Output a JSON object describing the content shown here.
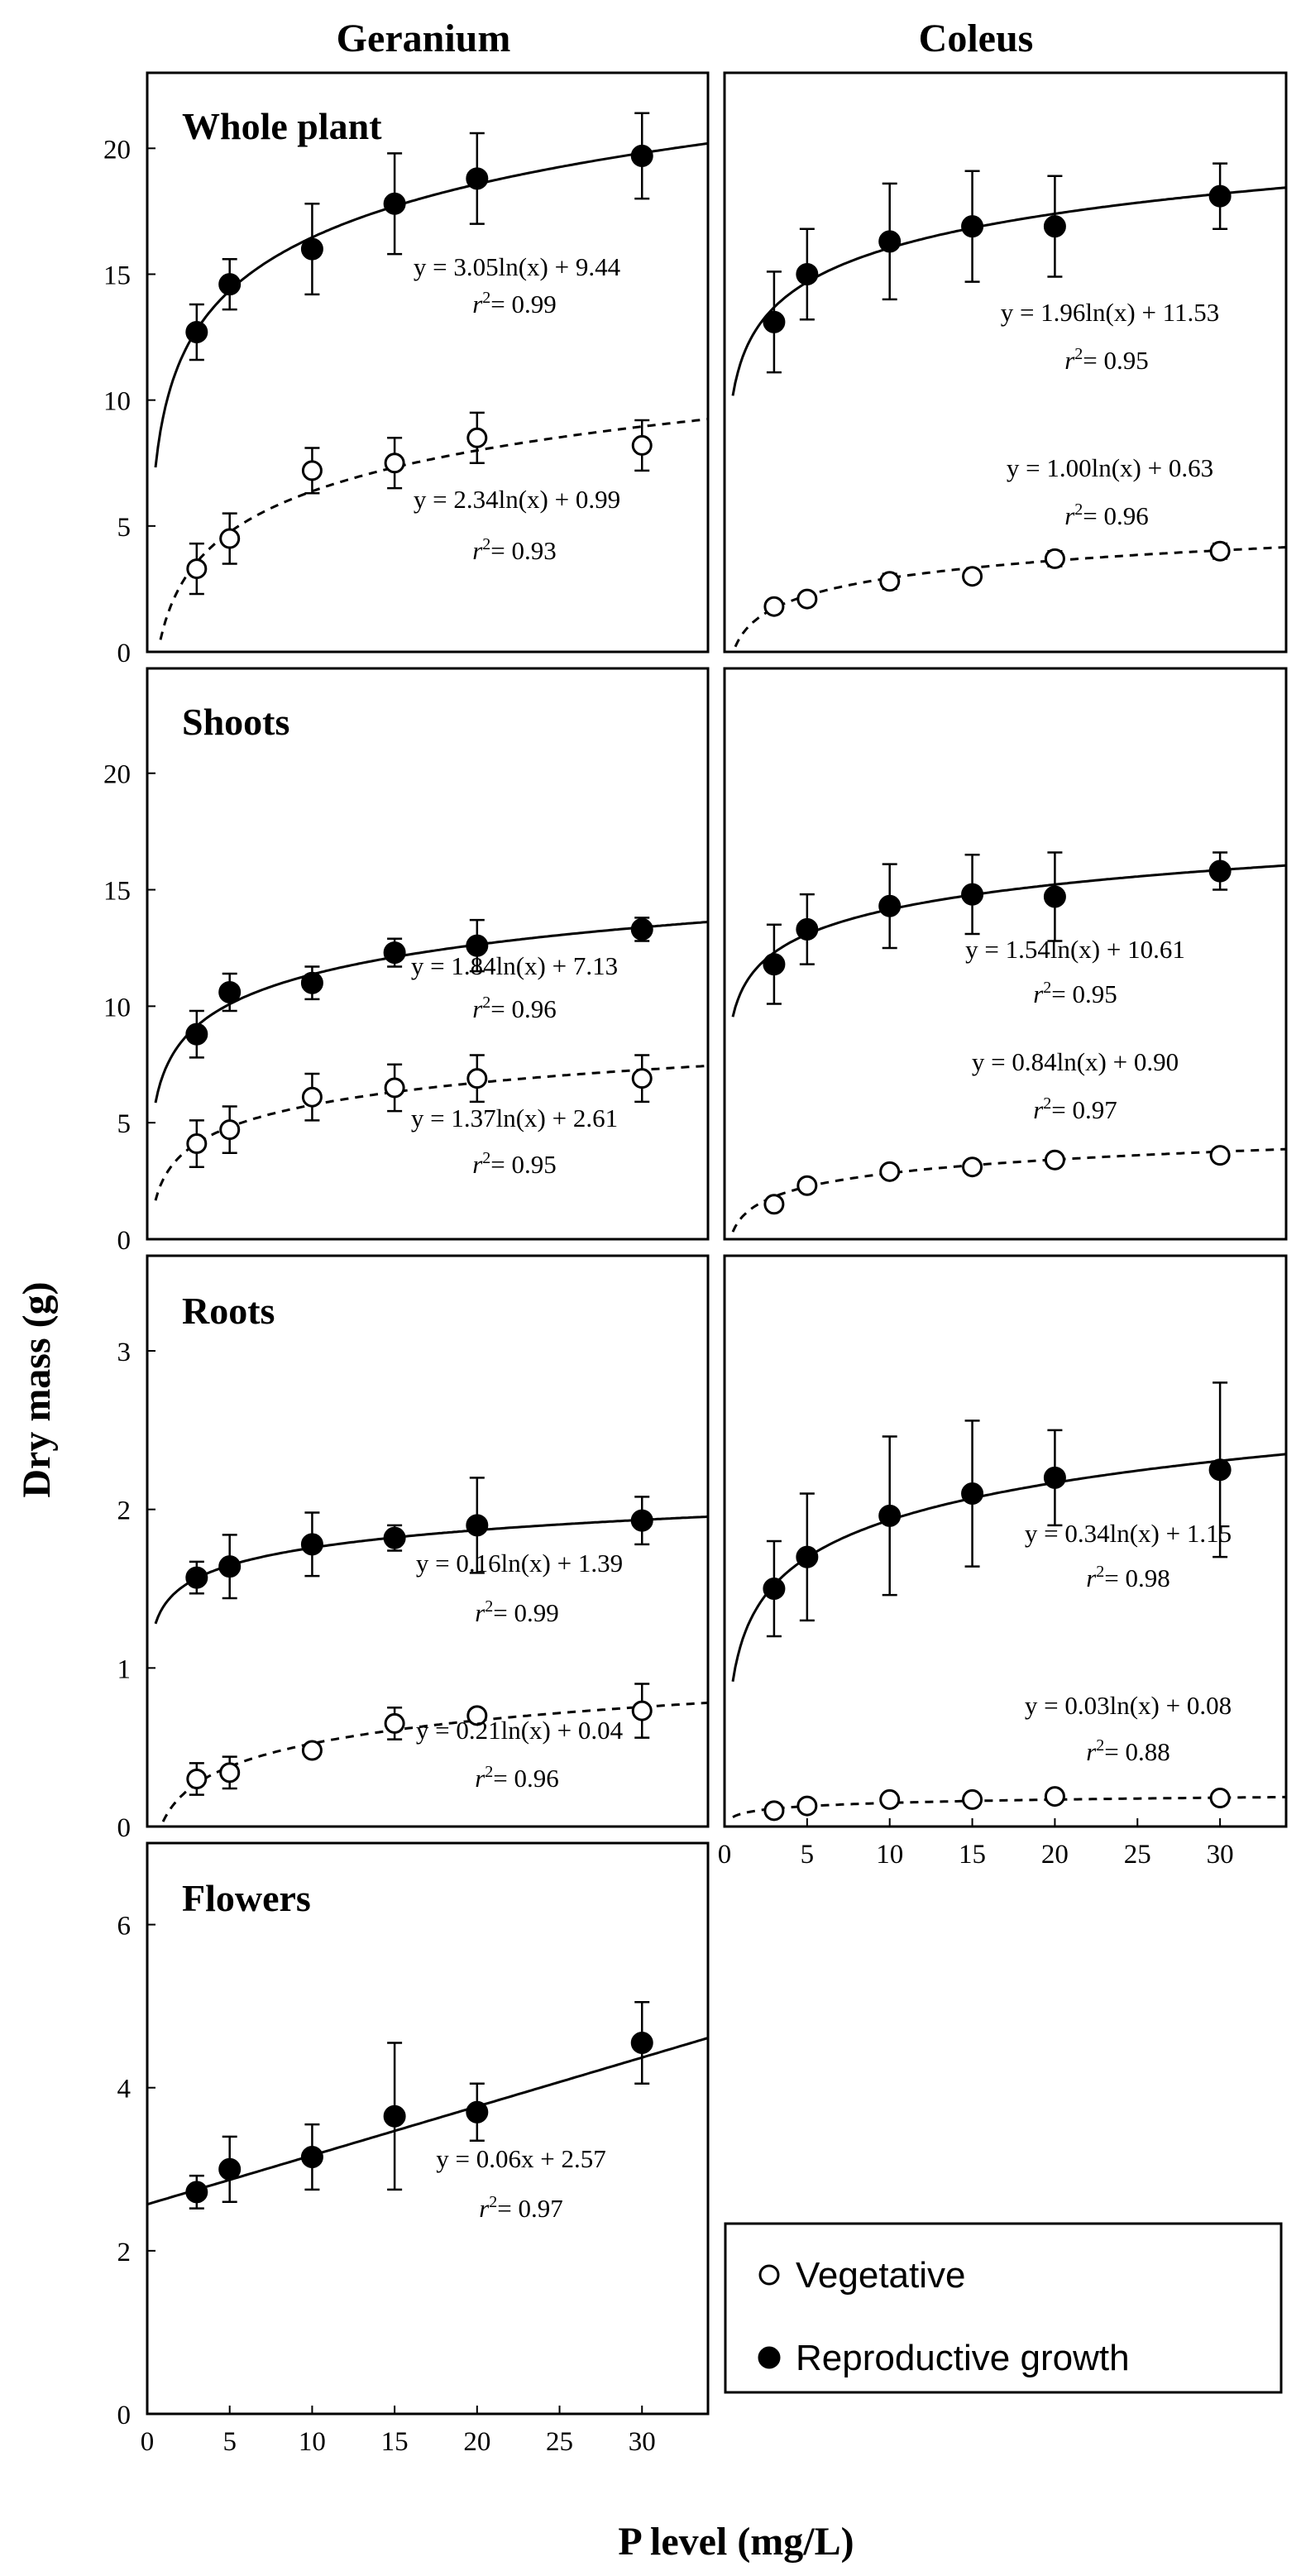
{
  "figure": {
    "col_titles": [
      "Geranium",
      "Coleus"
    ],
    "ylabel": "Dry mass (g)",
    "xlabel": "P level (mg/L)",
    "legend": {
      "vegetative": "Vegetative",
      "reproductive": "Reproductive growth"
    }
  },
  "chart_data": [
    {
      "type": "scatter",
      "id": "geranium-whole",
      "panel_title": "Whole plant",
      "xlim": [
        0,
        34
      ],
      "ylim": [
        0,
        23
      ],
      "yticks": [
        0,
        5,
        10,
        15,
        20
      ],
      "xticks": [],
      "series": [
        {
          "name": "Reproductive growth",
          "filled": true,
          "x": [
            3,
            5,
            10,
            15,
            20,
            30
          ],
          "y": [
            12.7,
            14.6,
            16.0,
            17.8,
            18.8,
            19.7
          ],
          "err": [
            1.1,
            1.0,
            1.8,
            2.0,
            1.8,
            1.7
          ],
          "fit": {
            "kind": "log",
            "a": 3.05,
            "b": 9.44,
            "dashed": false
          },
          "eq": "y = 3.05ln(x) + 9.44",
          "r2": "0.99"
        },
        {
          "name": "Vegetative",
          "filled": false,
          "x": [
            3,
            5,
            10,
            15,
            20,
            30
          ],
          "y": [
            3.3,
            4.5,
            7.2,
            7.5,
            8.5,
            8.2
          ],
          "err": [
            1.0,
            1.0,
            0.9,
            1.0,
            1.0,
            1.0
          ],
          "fit": {
            "kind": "log",
            "a": 2.34,
            "b": 0.99,
            "dashed": true
          },
          "eq": "y = 2.34ln(x) + 0.99",
          "r2": "0.93"
        }
      ]
    },
    {
      "type": "scatter",
      "id": "coleus-whole",
      "panel_title": "",
      "xlim": [
        0,
        34
      ],
      "ylim": [
        0,
        23
      ],
      "yticks": [],
      "xticks": [],
      "series": [
        {
          "name": "Reproductive growth",
          "filled": true,
          "x": [
            3,
            5,
            10,
            15,
            20,
            30
          ],
          "y": [
            13.1,
            15.0,
            16.3,
            16.9,
            16.9,
            18.1
          ],
          "err": [
            2.0,
            1.8,
            2.3,
            2.2,
            2.0,
            1.3
          ],
          "fit": {
            "kind": "log",
            "a": 1.96,
            "b": 11.53,
            "dashed": false
          },
          "eq": "y = 1.96ln(x) + 11.53",
          "r2": "0.95"
        },
        {
          "name": "Vegetative",
          "filled": false,
          "x": [
            3,
            5,
            10,
            15,
            20,
            30
          ],
          "y": [
            1.8,
            2.1,
            2.8,
            3.0,
            3.7,
            4.0
          ],
          "err": [
            0.2,
            0.2,
            0.3,
            0.2,
            0.3,
            0.3
          ],
          "fit": {
            "kind": "log",
            "a": 1.0,
            "b": 0.63,
            "dashed": true
          },
          "eq": "y = 1.00ln(x) + 0.63",
          "r2": "0.96"
        }
      ]
    },
    {
      "type": "scatter",
      "id": "geranium-shoots",
      "panel_title": "Shoots",
      "xlim": [
        0,
        34
      ],
      "ylim": [
        0,
        24.5
      ],
      "yticks": [
        0,
        5,
        10,
        15,
        20
      ],
      "xticks": [],
      "series": [
        {
          "name": "Reproductive growth",
          "filled": true,
          "x": [
            3,
            5,
            10,
            15,
            20,
            30
          ],
          "y": [
            8.8,
            10.6,
            11.0,
            12.3,
            12.6,
            13.3
          ],
          "err": [
            1.0,
            0.8,
            0.7,
            0.6,
            1.1,
            0.5
          ],
          "fit": {
            "kind": "log",
            "a": 1.84,
            "b": 7.13,
            "dashed": false
          },
          "eq": "y = 1.84ln(x) + 7.13",
          "r2": "0.96"
        },
        {
          "name": "Vegetative",
          "filled": false,
          "x": [
            3,
            5,
            10,
            15,
            20,
            30
          ],
          "y": [
            4.1,
            4.7,
            6.1,
            6.5,
            6.9,
            6.9
          ],
          "err": [
            1.0,
            1.0,
            1.0,
            1.0,
            1.0,
            1.0
          ],
          "fit": {
            "kind": "log",
            "a": 1.37,
            "b": 2.61,
            "dashed": true
          },
          "eq": "y = 1.37ln(x) + 2.61",
          "r2": "0.95"
        }
      ]
    },
    {
      "type": "scatter",
      "id": "coleus-shoots",
      "panel_title": "",
      "xlim": [
        0,
        34
      ],
      "ylim": [
        0,
        24.5
      ],
      "yticks": [],
      "xticks": [],
      "series": [
        {
          "name": "Reproductive growth",
          "filled": true,
          "x": [
            3,
            5,
            10,
            15,
            20,
            30
          ],
          "y": [
            11.8,
            13.3,
            14.3,
            14.8,
            14.7,
            15.8
          ],
          "err": [
            1.7,
            1.5,
            1.8,
            1.7,
            1.9,
            0.8
          ],
          "fit": {
            "kind": "log",
            "a": 1.54,
            "b": 10.61,
            "dashed": false
          },
          "eq": "y = 1.54ln(x) + 10.61",
          "r2": "0.95"
        },
        {
          "name": "Vegetative",
          "filled": false,
          "x": [
            3,
            5,
            10,
            15,
            20,
            30
          ],
          "y": [
            1.5,
            2.3,
            2.9,
            3.1,
            3.4,
            3.6
          ],
          "err": [
            0.2,
            0.2,
            0.2,
            0.2,
            0.2,
            0.2
          ],
          "fit": {
            "kind": "log",
            "a": 0.84,
            "b": 0.9,
            "dashed": true
          },
          "eq": "y = 0.84ln(x) + 0.90",
          "r2": "0.97"
        }
      ]
    },
    {
      "type": "scatter",
      "id": "geranium-roots",
      "panel_title": "Roots",
      "xlim": [
        0,
        34
      ],
      "ylim": [
        0,
        3.6
      ],
      "yticks": [
        0,
        1,
        2,
        3
      ],
      "xticks": [],
      "series": [
        {
          "name": "Reproductive growth",
          "filled": true,
          "x": [
            3,
            5,
            10,
            15,
            20,
            30
          ],
          "y": [
            1.57,
            1.64,
            1.78,
            1.82,
            1.9,
            1.93
          ],
          "err": [
            0.1,
            0.2,
            0.2,
            0.08,
            0.3,
            0.15
          ],
          "fit": {
            "kind": "log",
            "a": 0.16,
            "b": 1.39,
            "dashed": false
          },
          "eq": "y = 0.16ln(x) + 1.39",
          "r2": "0.99"
        },
        {
          "name": "Vegetative",
          "filled": false,
          "x": [
            3,
            5,
            10,
            15,
            20,
            30
          ],
          "y": [
            0.3,
            0.34,
            0.48,
            0.65,
            0.7,
            0.73
          ],
          "err": [
            0.1,
            0.1,
            0.04,
            0.1,
            0.04,
            0.17
          ],
          "fit": {
            "kind": "log",
            "a": 0.21,
            "b": 0.04,
            "dashed": true
          },
          "eq": "y = 0.21ln(x) + 0.04",
          "r2": "0.96"
        }
      ]
    },
    {
      "type": "scatter",
      "id": "coleus-roots",
      "panel_title": "",
      "xlim": [
        0,
        34
      ],
      "ylim": [
        0,
        3.6
      ],
      "yticks": [],
      "xticks": [
        0,
        5,
        10,
        15,
        20,
        25,
        30
      ],
      "series": [
        {
          "name": "Reproductive growth",
          "filled": true,
          "x": [
            3,
            5,
            10,
            15,
            20,
            30
          ],
          "y": [
            1.5,
            1.7,
            1.96,
            2.1,
            2.2,
            2.25
          ],
          "err": [
            0.3,
            0.4,
            0.5,
            0.46,
            0.3,
            0.55
          ],
          "fit": {
            "kind": "log",
            "a": 0.34,
            "b": 1.15,
            "dashed": false
          },
          "eq": "y = 0.34ln(x) + 1.15",
          "r2": "0.98"
        },
        {
          "name": "Vegetative",
          "filled": false,
          "x": [
            3,
            5,
            10,
            15,
            20,
            30
          ],
          "y": [
            0.1,
            0.13,
            0.17,
            0.17,
            0.19,
            0.18
          ],
          "err": [
            0.02,
            0.02,
            0.02,
            0.02,
            0.02,
            0.02
          ],
          "fit": {
            "kind": "log",
            "a": 0.03,
            "b": 0.08,
            "dashed": true
          },
          "eq": "y = 0.03ln(x) + 0.08",
          "r2": "0.88"
        }
      ]
    },
    {
      "type": "scatter",
      "id": "geranium-flowers",
      "panel_title": "Flowers",
      "xlim": [
        0,
        34
      ],
      "ylim": [
        0,
        7
      ],
      "yticks": [
        0,
        2,
        4,
        6
      ],
      "xticks": [
        0,
        5,
        10,
        15,
        20,
        25,
        30
      ],
      "series": [
        {
          "name": "Reproductive growth",
          "filled": true,
          "x": [
            3,
            5,
            10,
            15,
            20,
            30
          ],
          "y": [
            2.72,
            3.0,
            3.15,
            3.65,
            3.7,
            4.55
          ],
          "err": [
            0.2,
            0.4,
            0.4,
            0.9,
            0.35,
            0.5
          ],
          "fit": {
            "kind": "linear",
            "a": 0.06,
            "b": 2.57,
            "dashed": false
          },
          "eq": "y = 0.06x + 2.57",
          "r2": "0.97"
        }
      ]
    }
  ]
}
